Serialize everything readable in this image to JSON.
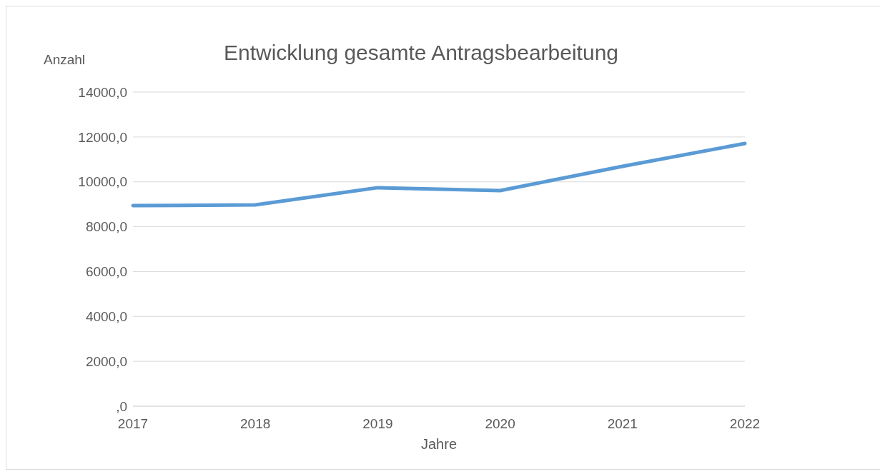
{
  "chart_data": {
    "type": "line",
    "title": "Entwicklung gesamte Antragsbearbeitung",
    "xlabel": "Jahre",
    "ylabel": "Anzahl",
    "categories": [
      "2017",
      "2018",
      "2019",
      "2020",
      "2021",
      "2022"
    ],
    "series": [
      {
        "color": "#5b9bd5",
        "values": [
          8940,
          8970,
          9740,
          9610,
          10690,
          11710
        ]
      }
    ],
    "ylim": [
      0,
      14000
    ],
    "yticks": [
      {
        "value": 0,
        "label": ",0"
      },
      {
        "value": 2000,
        "label": "2000,0"
      },
      {
        "value": 4000,
        "label": "4000,0"
      },
      {
        "value": 6000,
        "label": "6000,0"
      },
      {
        "value": 8000,
        "label": "8000,0"
      },
      {
        "value": 10000,
        "label": "10000,0"
      },
      {
        "value": 12000,
        "label": "12000,0"
      },
      {
        "value": 14000,
        "label": "14000,0"
      }
    ],
    "grid": "y",
    "legend": false,
    "marker": "none",
    "line_style": "solid"
  }
}
